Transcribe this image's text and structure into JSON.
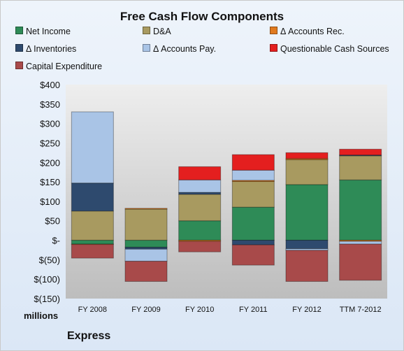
{
  "chart_data": {
    "type": "bar",
    "stacked": true,
    "title": "Free Cash Flow Components",
    "categories": [
      "FY 2008",
      "FY 2009",
      "FY 2010",
      "FY 2011",
      "FY 2012",
      "TTM 7-2012"
    ],
    "series": [
      {
        "name": "Net Income",
        "color": "#2e8b57",
        "values": [
          -10,
          -18,
          50,
          85,
          143,
          155
        ]
      },
      {
        "name": "D&A",
        "color": "#a89a60",
        "values": [
          75,
          80,
          68,
          66,
          64,
          62
        ]
      },
      {
        "name": "Δ Accounts Rec.",
        "color": "#e07a1f",
        "values": [
          -1,
          2,
          -3,
          3,
          3,
          -3
        ]
      },
      {
        "name": "Δ Inventories",
        "color": "#2e4a6e",
        "values": [
          72,
          -5,
          5,
          -12,
          -22,
          2
        ]
      },
      {
        "name": "Δ Accounts Pay.",
        "color": "#a9c4e6",
        "values": [
          183,
          -31,
          32,
          26,
          -4,
          -7
        ]
      },
      {
        "name": "Questionable Cash Sources",
        "color": "#e41f1f",
        "values": [
          0,
          0,
          34,
          40,
          15,
          15
        ]
      },
      {
        "name": "Capital Expenditure",
        "color": "#a84a4a",
        "values": [
          -35,
          -52,
          -27,
          -52,
          -80,
          -93
        ]
      }
    ],
    "ylim": [
      -150,
      400
    ],
    "yticks": [
      -150,
      -100,
      -50,
      0,
      50,
      100,
      150,
      200,
      250,
      300,
      350,
      400
    ],
    "ytick_labels": [
      "$(150)",
      "$(100)",
      "$(50)",
      "$-",
      "$50",
      "$100",
      "$150",
      "$200",
      "$250",
      "$300",
      "$350",
      "$400"
    ],
    "units_label": "millions",
    "company": "Express",
    "legend_position": "top",
    "grid": false
  }
}
